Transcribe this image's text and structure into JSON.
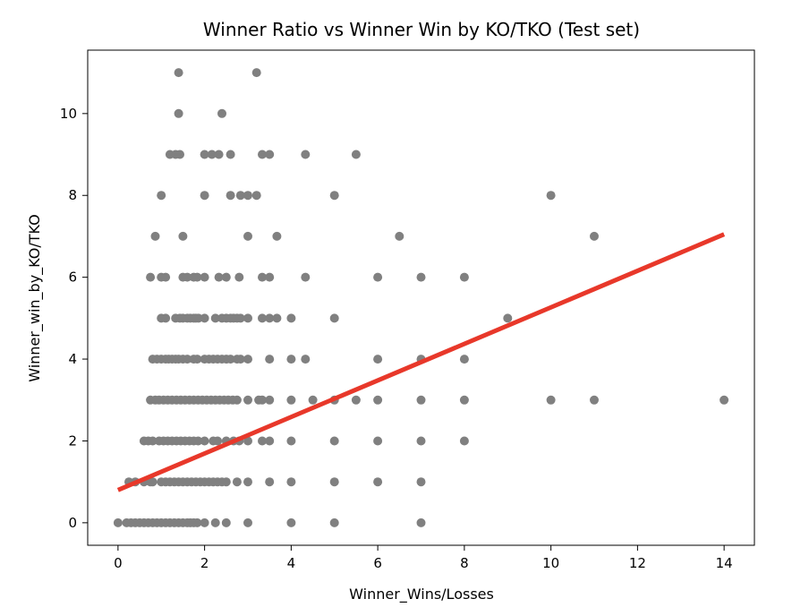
{
  "chart_data": {
    "type": "scatter",
    "title": "Winner Ratio vs Winner Win by KO/TKO (Test set)",
    "xlabel": "Winner_Wins/Losses",
    "ylabel": "Winner_win_by_KO/TKO",
    "xlim": [
      -0.7,
      14.7
    ],
    "ylim": [
      -0.55,
      11.55
    ],
    "xticks": [
      0,
      2,
      4,
      6,
      8,
      10,
      12,
      14
    ],
    "yticks": [
      0,
      2,
      4,
      6,
      8,
      10
    ],
    "grid": false,
    "point_color": "#808080",
    "line_color": "#e8382a",
    "series": [
      {
        "kind": "scatter",
        "points": [
          [
            1.4,
            11
          ],
          [
            3.2,
            11
          ],
          [
            1.4,
            10
          ],
          [
            2.4,
            10
          ],
          [
            1.2,
            9
          ],
          [
            1.33,
            9
          ],
          [
            1.43,
            9
          ],
          [
            2.0,
            9
          ],
          [
            2.17,
            9
          ],
          [
            2.33,
            9
          ],
          [
            2.6,
            9
          ],
          [
            3.33,
            9
          ],
          [
            3.5,
            9
          ],
          [
            4.33,
            9
          ],
          [
            5.5,
            9
          ],
          [
            1.0,
            8
          ],
          [
            2.0,
            8
          ],
          [
            2.6,
            8
          ],
          [
            2.83,
            8
          ],
          [
            3.0,
            8
          ],
          [
            3.2,
            8
          ],
          [
            5.0,
            8
          ],
          [
            10.0,
            8
          ],
          [
            0.86,
            7
          ],
          [
            1.5,
            7
          ],
          [
            3.0,
            7
          ],
          [
            3.67,
            7
          ],
          [
            6.5,
            7
          ],
          [
            11.0,
            7
          ],
          [
            0.75,
            6
          ],
          [
            1.0,
            6
          ],
          [
            1.1,
            6
          ],
          [
            1.5,
            6
          ],
          [
            1.6,
            6
          ],
          [
            1.75,
            6
          ],
          [
            1.83,
            6
          ],
          [
            2.0,
            6
          ],
          [
            2.33,
            6
          ],
          [
            2.5,
            6
          ],
          [
            2.8,
            6
          ],
          [
            3.33,
            6
          ],
          [
            3.5,
            6
          ],
          [
            4.33,
            6
          ],
          [
            6.0,
            6
          ],
          [
            7.0,
            6
          ],
          [
            8.0,
            6
          ],
          [
            1.0,
            5
          ],
          [
            1.1,
            5
          ],
          [
            1.33,
            5
          ],
          [
            1.43,
            5
          ],
          [
            1.5,
            5
          ],
          [
            1.6,
            5
          ],
          [
            1.67,
            5
          ],
          [
            1.75,
            5
          ],
          [
            1.8,
            5
          ],
          [
            1.86,
            5
          ],
          [
            2.0,
            5
          ],
          [
            2.25,
            5
          ],
          [
            2.4,
            5
          ],
          [
            2.5,
            5
          ],
          [
            2.6,
            5
          ],
          [
            2.67,
            5
          ],
          [
            2.75,
            5
          ],
          [
            2.83,
            5
          ],
          [
            3.0,
            5
          ],
          [
            3.33,
            5
          ],
          [
            3.5,
            5
          ],
          [
            3.67,
            5
          ],
          [
            4.0,
            5
          ],
          [
            5.0,
            5
          ],
          [
            9.0,
            5
          ],
          [
            0.8,
            4
          ],
          [
            0.9,
            4
          ],
          [
            1.0,
            4
          ],
          [
            1.1,
            4
          ],
          [
            1.17,
            4
          ],
          [
            1.25,
            4
          ],
          [
            1.33,
            4
          ],
          [
            1.4,
            4
          ],
          [
            1.5,
            4
          ],
          [
            1.6,
            4
          ],
          [
            1.75,
            4
          ],
          [
            1.83,
            4
          ],
          [
            2.0,
            4
          ],
          [
            2.1,
            4
          ],
          [
            2.2,
            4
          ],
          [
            2.3,
            4
          ],
          [
            2.4,
            4
          ],
          [
            2.5,
            4
          ],
          [
            2.6,
            4
          ],
          [
            2.75,
            4
          ],
          [
            2.83,
            4
          ],
          [
            3.0,
            4
          ],
          [
            3.5,
            4
          ],
          [
            4.0,
            4
          ],
          [
            4.33,
            4
          ],
          [
            6.0,
            4
          ],
          [
            7.0,
            4
          ],
          [
            8.0,
            4
          ],
          [
            0.75,
            3
          ],
          [
            0.86,
            3
          ],
          [
            0.95,
            3
          ],
          [
            1.05,
            3
          ],
          [
            1.15,
            3
          ],
          [
            1.25,
            3
          ],
          [
            1.35,
            3
          ],
          [
            1.45,
            3
          ],
          [
            1.55,
            3
          ],
          [
            1.65,
            3
          ],
          [
            1.75,
            3
          ],
          [
            1.85,
            3
          ],
          [
            1.95,
            3
          ],
          [
            2.05,
            3
          ],
          [
            2.15,
            3
          ],
          [
            2.25,
            3
          ],
          [
            2.35,
            3
          ],
          [
            2.45,
            3
          ],
          [
            2.55,
            3
          ],
          [
            2.65,
            3
          ],
          [
            2.75,
            3
          ],
          [
            3.0,
            3
          ],
          [
            3.25,
            3
          ],
          [
            3.33,
            3
          ],
          [
            3.5,
            3
          ],
          [
            4.0,
            3
          ],
          [
            4.5,
            3
          ],
          [
            5.0,
            3
          ],
          [
            5.5,
            3
          ],
          [
            6.0,
            3
          ],
          [
            7.0,
            3
          ],
          [
            8.0,
            3
          ],
          [
            10.0,
            3
          ],
          [
            11.0,
            3
          ],
          [
            14.0,
            3
          ],
          [
            0.6,
            2
          ],
          [
            0.7,
            2
          ],
          [
            0.8,
            2
          ],
          [
            0.95,
            2
          ],
          [
            1.05,
            2
          ],
          [
            1.15,
            2
          ],
          [
            1.25,
            2
          ],
          [
            1.35,
            2
          ],
          [
            1.45,
            2
          ],
          [
            1.55,
            2
          ],
          [
            1.65,
            2
          ],
          [
            1.75,
            2
          ],
          [
            1.85,
            2
          ],
          [
            2.0,
            2
          ],
          [
            2.2,
            2
          ],
          [
            2.3,
            2
          ],
          [
            2.5,
            2
          ],
          [
            2.67,
            2
          ],
          [
            2.8,
            2
          ],
          [
            3.0,
            2
          ],
          [
            3.33,
            2
          ],
          [
            3.5,
            2
          ],
          [
            4.0,
            2
          ],
          [
            5.0,
            2
          ],
          [
            6.0,
            2
          ],
          [
            7.0,
            2
          ],
          [
            8.0,
            2
          ],
          [
            0.25,
            1
          ],
          [
            0.4,
            1
          ],
          [
            0.6,
            1
          ],
          [
            0.75,
            1
          ],
          [
            0.8,
            1
          ],
          [
            1.0,
            1
          ],
          [
            1.1,
            1
          ],
          [
            1.2,
            1
          ],
          [
            1.3,
            1
          ],
          [
            1.4,
            1
          ],
          [
            1.5,
            1
          ],
          [
            1.6,
            1
          ],
          [
            1.7,
            1
          ],
          [
            1.8,
            1
          ],
          [
            1.9,
            1
          ],
          [
            2.0,
            1
          ],
          [
            2.1,
            1
          ],
          [
            2.2,
            1
          ],
          [
            2.3,
            1
          ],
          [
            2.4,
            1
          ],
          [
            2.5,
            1
          ],
          [
            2.75,
            1
          ],
          [
            3.0,
            1
          ],
          [
            3.5,
            1
          ],
          [
            4.0,
            1
          ],
          [
            5.0,
            1
          ],
          [
            6.0,
            1
          ],
          [
            7.0,
            1
          ],
          [
            0.0,
            0
          ],
          [
            0.2,
            0
          ],
          [
            0.3,
            0
          ],
          [
            0.4,
            0
          ],
          [
            0.5,
            0
          ],
          [
            0.6,
            0
          ],
          [
            0.7,
            0
          ],
          [
            0.8,
            0
          ],
          [
            0.9,
            0
          ],
          [
            1.0,
            0
          ],
          [
            1.1,
            0
          ],
          [
            1.2,
            0
          ],
          [
            1.3,
            0
          ],
          [
            1.4,
            0
          ],
          [
            1.5,
            0
          ],
          [
            1.6,
            0
          ],
          [
            1.67,
            0
          ],
          [
            1.75,
            0
          ],
          [
            1.83,
            0
          ],
          [
            2.0,
            0
          ],
          [
            2.25,
            0
          ],
          [
            2.5,
            0
          ],
          [
            3.0,
            0
          ],
          [
            4.0,
            0
          ],
          [
            5.0,
            0
          ],
          [
            7.0,
            0
          ]
        ]
      },
      {
        "kind": "line",
        "points": [
          [
            0.0,
            0.8
          ],
          [
            14.0,
            7.05
          ]
        ]
      }
    ]
  }
}
